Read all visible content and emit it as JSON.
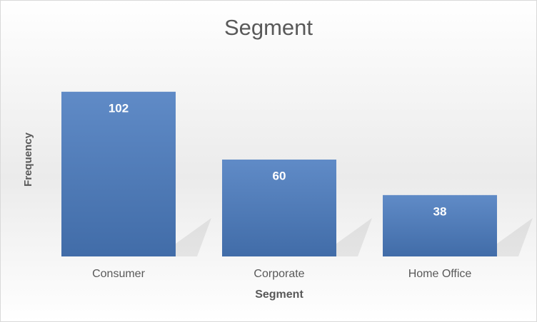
{
  "chart_data": {
    "type": "bar",
    "title": "Segment",
    "x_label": "Segment",
    "y_label": "Frequency",
    "categories": [
      "Consumer",
      "Corporate",
      "Home Office"
    ],
    "values": [
      102,
      60,
      38
    ],
    "color": "#4a7bbf",
    "ylim": [
      0,
      120
    ]
  }
}
